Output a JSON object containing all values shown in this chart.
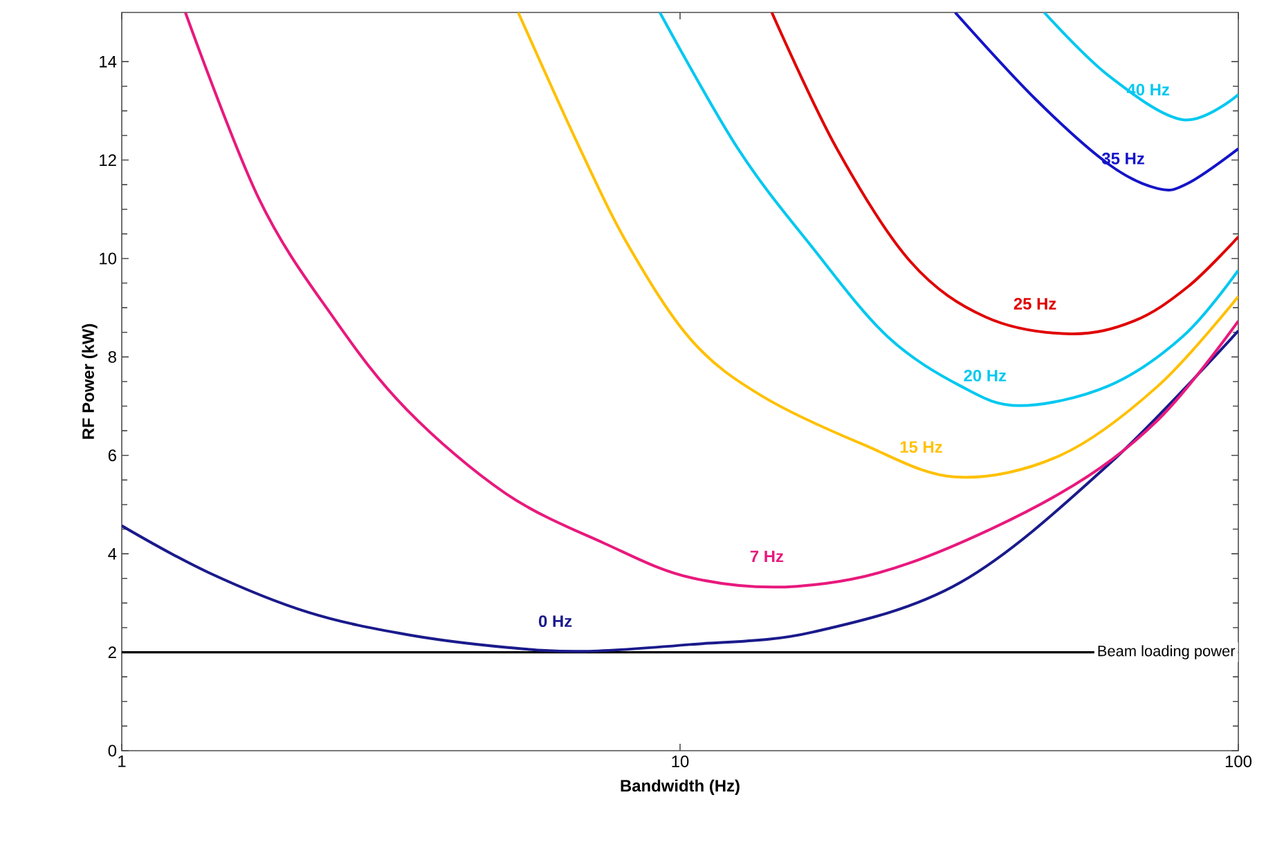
{
  "chart_data": {
    "type": "line",
    "xlabel": "Bandwidth (Hz)",
    "ylabel": "RF Power (kW)",
    "log": "x",
    "xlim": [
      1,
      100
    ],
    "xticks": [
      1,
      10,
      100
    ],
    "ylim": [
      0,
      15
    ],
    "yticks": [
      0,
      2,
      4,
      6,
      8,
      10,
      12,
      14
    ],
    "grid": false,
    "legend": false,
    "marker": "none",
    "line_style": "solid",
    "series": [
      {
        "name": "0 Hz",
        "color": "#1a1a8c",
        "x": [
          1,
          1.43,
          2.16,
          3.24,
          4.88,
          6.77,
          10.5,
          17.3,
          31.8,
          58.5,
          100
        ],
        "values": [
          4.57,
          3.62,
          2.81,
          2.36,
          2.1,
          2.02,
          2.16,
          2.41,
          3.42,
          5.81,
          8.53
        ]
      },
      {
        "name": "7 Hz",
        "color": "#e8197d",
        "x": [
          1.3,
          1.76,
          2.39,
          3.24,
          4.88,
          7.33,
          10.5,
          16.2,
          25.9,
          47.8,
          71.8,
          100
        ],
        "values": [
          15,
          11.22,
          8.81,
          6.93,
          5.22,
          4.21,
          3.51,
          3.34,
          3.82,
          5.22,
          6.72,
          8.73
        ]
      },
      {
        "name": "15 Hz",
        "color": "#ffc000",
        "x": [
          5.13,
          6.62,
          8.13,
          10.5,
          14,
          21.2,
          31.2,
          48,
          71.8,
          100
        ],
        "values": [
          15,
          12.23,
          10.21,
          8.33,
          7.21,
          6.23,
          5.56,
          6.0,
          7.41,
          9.23
        ]
      },
      {
        "name": "20 Hz",
        "color": "#00c8f0",
        "x": [
          9.2,
          12.7,
          17.3,
          23.5,
          31.8,
          40.6,
          58.5,
          79.6,
          100
        ],
        "values": [
          15,
          12.23,
          10.21,
          8.42,
          7.41,
          7.01,
          7.41,
          8.42,
          9.76
        ]
      },
      {
        "name": "25 Hz",
        "color": "#e00000",
        "x": [
          14.6,
          19.1,
          25.9,
          35.3,
          49.9,
          65,
          81.3,
          100
        ],
        "values": [
          15,
          12.23,
          9.93,
          8.81,
          8.47,
          8.73,
          9.43,
          10.44
        ]
      },
      {
        "name": "35 Hz",
        "color": "#1414c8",
        "x": [
          31.1,
          43.3,
          58.5,
          71.8,
          81.3,
          100
        ],
        "values": [
          15,
          13.24,
          11.92,
          11.42,
          11.53,
          12.23
        ]
      },
      {
        "name": "40 Hz",
        "color": "#00c8f0",
        "x": [
          44.9,
          58.5,
          79.6,
          100
        ],
        "values": [
          15,
          13.72,
          12.82,
          13.33
        ]
      }
    ],
    "ref_lines": [
      {
        "axis": "y",
        "value": 2,
        "label": "Beam loading power",
        "color": "#000000"
      }
    ]
  }
}
